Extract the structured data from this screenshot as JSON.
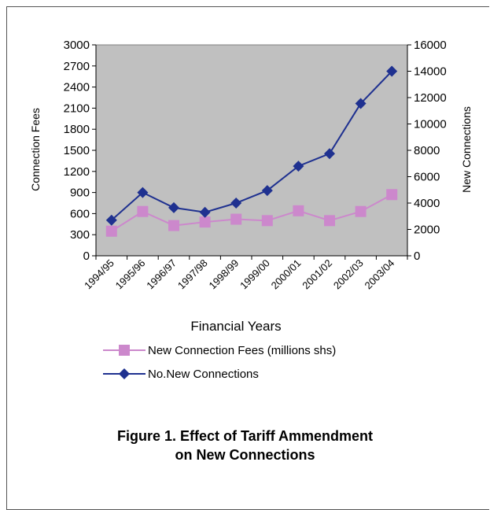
{
  "chart_data": {
    "type": "line",
    "xlabel": "Financial Years",
    "ylabel_left": "Connection Fees",
    "ylabel_right": "New Connections",
    "categories": [
      "1994/95",
      "1995/96",
      "1996/97",
      "1997/98",
      "1998/99",
      "1999/00",
      "2000/01",
      "2001/02",
      "2002/03",
      "2003/04"
    ],
    "y_left": {
      "min": 0,
      "max": 3000,
      "ticks": [
        0,
        300,
        600,
        900,
        1200,
        1500,
        1800,
        2100,
        2400,
        2700,
        3000
      ]
    },
    "y_right": {
      "min": 0,
      "max": 16000,
      "ticks": [
        0,
        2000,
        4000,
        6000,
        8000,
        10000,
        12000,
        14000,
        16000
      ]
    },
    "grid": false,
    "plot_background": "#c0c0c0",
    "legend_position": "below",
    "series": [
      {
        "name": "New Connection Fees (millions shs)",
        "axis": "left",
        "color": "#cc88cc",
        "marker": "square",
        "values": [
          350,
          630,
          430,
          480,
          520,
          500,
          640,
          500,
          630,
          870
        ]
      },
      {
        "name": "No.New Connections",
        "axis": "right",
        "color": "#1f3190",
        "marker": "diamond",
        "values": [
          2700,
          4800,
          3650,
          3300,
          4000,
          4950,
          6800,
          7750,
          11550,
          14000
        ]
      }
    ]
  },
  "caption": {
    "line1": "Figure 1. Effect of Tariff Ammendment",
    "line2": "on New Connections"
  }
}
